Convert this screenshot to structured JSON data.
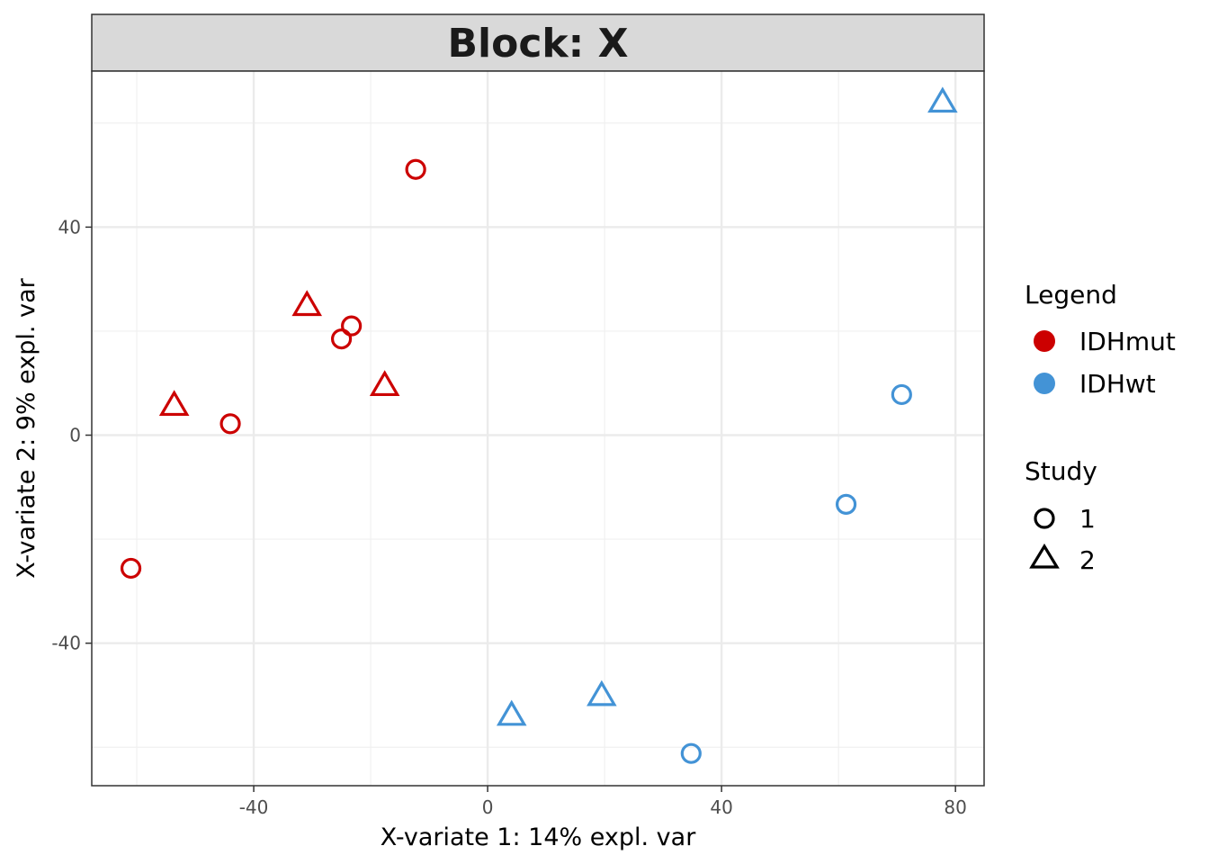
{
  "chart_data": {
    "type": "scatter",
    "title": "Block: X",
    "xlabel": "X-variate 1: 14% expl. var",
    "ylabel": "X-variate 2: 9% expl. var",
    "xlim": [
      -67.7,
      84.9
    ],
    "ylim": [
      -67.4,
      70
    ],
    "x_ticks": [
      -40,
      0,
      40,
      80
    ],
    "y_ticks": [
      -40,
      0,
      40
    ],
    "grid": true,
    "legend_position": "right",
    "colors": {
      "IDHmut": "#CC0000",
      "IDHwt": "#4393D6"
    },
    "legend": {
      "color_title": "Legend",
      "color_items": [
        "IDHmut",
        "IDHwt"
      ],
      "shape_title": "Study",
      "shape_items": [
        {
          "label": "1",
          "shape": "circle"
        },
        {
          "label": "2",
          "shape": "triangle"
        }
      ]
    },
    "series": [
      {
        "name": "IDHmut",
        "points": [
          {
            "x": -12.3,
            "y": 51.1,
            "study": "1"
          },
          {
            "x": -23.3,
            "y": 21.0,
            "study": "1"
          },
          {
            "x": -25.0,
            "y": 18.5,
            "study": "1"
          },
          {
            "x": -44.0,
            "y": 2.2,
            "study": "1"
          },
          {
            "x": -61.0,
            "y": -25.6,
            "study": "1"
          },
          {
            "x": -30.9,
            "y": 25.1,
            "study": "2"
          },
          {
            "x": -17.6,
            "y": 9.7,
            "study": "2"
          },
          {
            "x": -53.6,
            "y": 5.9,
            "study": "2"
          }
        ]
      },
      {
        "name": "IDHwt",
        "points": [
          {
            "x": 70.8,
            "y": 7.8,
            "study": "1"
          },
          {
            "x": 61.3,
            "y": -13.3,
            "study": "1"
          },
          {
            "x": 34.8,
            "y": -61.2,
            "study": "1"
          },
          {
            "x": 77.8,
            "y": 64.2,
            "study": "2"
          },
          {
            "x": 19.5,
            "y": -49.9,
            "study": "2"
          },
          {
            "x": 4.1,
            "y": -53.7,
            "study": "2"
          }
        ]
      }
    ]
  }
}
